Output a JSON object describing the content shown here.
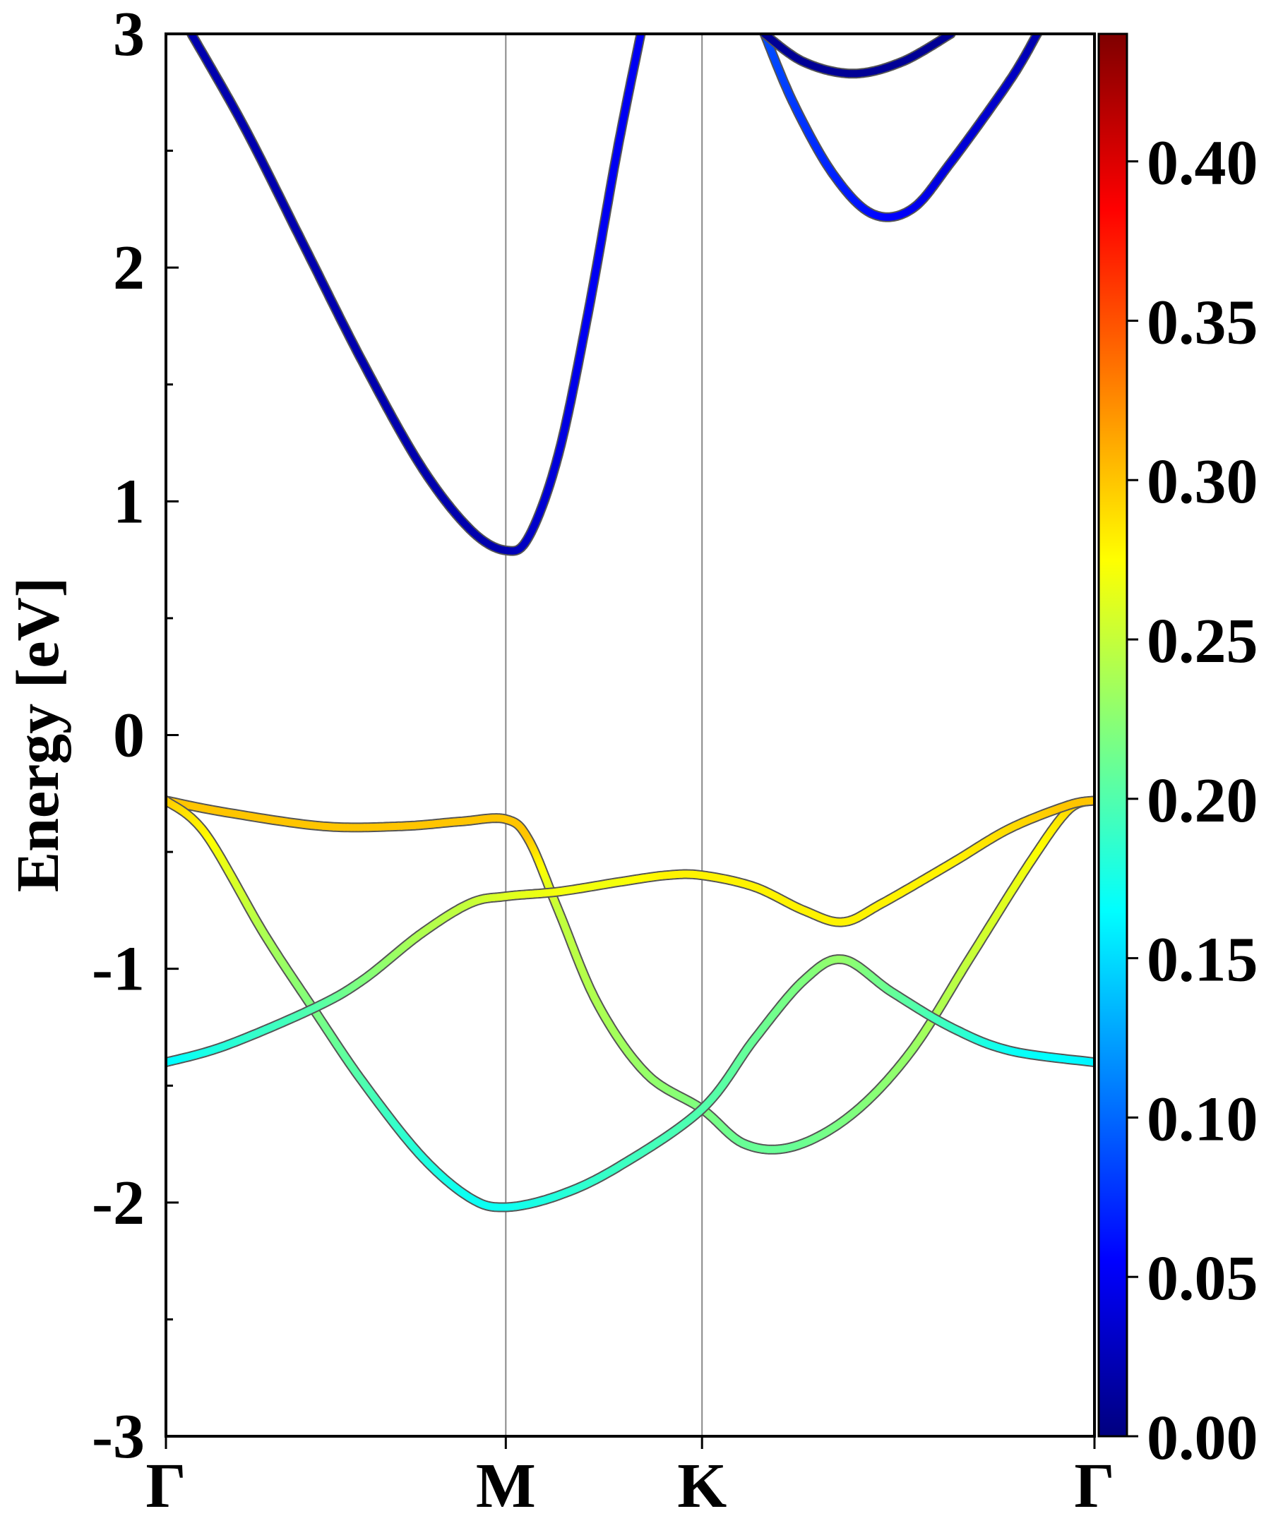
{
  "chart_data": {
    "type": "line",
    "title": "",
    "xlabel": "",
    "ylabel": "Energy [eV]",
    "ylim": [
      -3,
      3
    ],
    "y_ticks": [
      -3,
      -2,
      -1,
      0,
      1,
      2,
      3
    ],
    "y_tick_labels": [
      "-3",
      "-2",
      "-1",
      "0",
      "1",
      "2",
      "3"
    ],
    "y_minor_step": 0.5,
    "x_ticks": [
      0,
      1.732,
      2.732,
      4.732
    ],
    "x_tick_labels": [
      "Γ",
      "M",
      "K",
      "Γ"
    ],
    "xlim": [
      0,
      4.732
    ],
    "grid": false,
    "vertical_lines_at": [
      1.732,
      2.732
    ],
    "colorbar": {
      "colormap": "jet",
      "min": 0.0,
      "max": 0.44,
      "ticks": [
        0.0,
        0.05,
        0.1,
        0.15,
        0.2,
        0.25,
        0.3,
        0.35,
        0.4
      ],
      "tick_labels": [
        "0.00",
        "0.05",
        "0.10",
        "0.15",
        "0.20",
        "0.25",
        "0.30",
        "0.35",
        "0.40"
      ],
      "colors": [
        "#00007f",
        "#0000ff",
        "#007fff",
        "#00ffff",
        "#7fff7f",
        "#ffff00",
        "#ff7f00",
        "#ff0000",
        "#7f0000"
      ]
    },
    "series": [
      {
        "points": [
          [
            0.0,
            -0.28
          ],
          [
            0.3,
            -0.33
          ],
          [
            0.8,
            -0.39
          ],
          [
            1.2,
            -0.39
          ],
          [
            1.5,
            -0.37
          ],
          [
            1.732,
            -0.36
          ],
          [
            1.85,
            -0.45
          ],
          [
            2.0,
            -0.75
          ],
          [
            2.2,
            -1.15
          ],
          [
            2.45,
            -1.45
          ],
          [
            2.732,
            -1.6
          ],
          [
            2.95,
            -1.75
          ],
          [
            3.2,
            -1.76
          ],
          [
            3.5,
            -1.62
          ],
          [
            3.8,
            -1.35
          ],
          [
            4.1,
            -0.95
          ],
          [
            4.4,
            -0.55
          ],
          [
            4.6,
            -0.32
          ],
          [
            4.732,
            -0.28
          ]
        ],
        "weights": [
          0.3,
          0.3,
          0.3,
          0.3,
          0.3,
          0.3,
          0.3,
          0.25,
          0.24,
          0.23,
          0.22,
          0.21,
          0.21,
          0.22,
          0.23,
          0.25,
          0.27,
          0.29,
          0.3
        ]
      },
      {
        "points": [
          [
            0.0,
            -0.28
          ],
          [
            0.2,
            -0.42
          ],
          [
            0.5,
            -0.85
          ],
          [
            0.75,
            -1.17
          ],
          [
            1.0,
            -1.48
          ],
          [
            1.3,
            -1.8
          ],
          [
            1.55,
            -1.98
          ],
          [
            1.732,
            -2.02
          ],
          [
            2.0,
            -1.97
          ],
          [
            2.3,
            -1.85
          ],
          [
            2.732,
            -1.6
          ],
          [
            3.0,
            -1.3
          ],
          [
            3.25,
            -1.05
          ],
          [
            3.45,
            -0.96
          ],
          [
            3.7,
            -1.1
          ],
          [
            4.0,
            -1.25
          ],
          [
            4.3,
            -1.35
          ],
          [
            4.732,
            -1.4
          ]
        ],
        "weights": [
          0.3,
          0.28,
          0.24,
          0.22,
          0.2,
          0.18,
          0.17,
          0.17,
          0.18,
          0.19,
          0.2,
          0.21,
          0.22,
          0.23,
          0.21,
          0.19,
          0.17,
          0.16
        ]
      },
      {
        "points": [
          [
            0.0,
            -1.4
          ],
          [
            0.3,
            -1.33
          ],
          [
            0.75,
            -1.17
          ],
          [
            1.0,
            -1.05
          ],
          [
            1.3,
            -0.85
          ],
          [
            1.55,
            -0.72
          ],
          [
            1.732,
            -0.69
          ],
          [
            2.0,
            -0.67
          ],
          [
            2.3,
            -0.63
          ],
          [
            2.55,
            -0.6
          ],
          [
            2.732,
            -0.6
          ],
          [
            3.0,
            -0.65
          ],
          [
            3.25,
            -0.75
          ],
          [
            3.45,
            -0.8
          ],
          [
            3.65,
            -0.72
          ],
          [
            4.0,
            -0.55
          ],
          [
            4.3,
            -0.4
          ],
          [
            4.6,
            -0.3
          ],
          [
            4.732,
            -0.28
          ]
        ],
        "weights": [
          0.16,
          0.18,
          0.2,
          0.22,
          0.24,
          0.25,
          0.26,
          0.27,
          0.27,
          0.28,
          0.28,
          0.28,
          0.28,
          0.28,
          0.28,
          0.28,
          0.29,
          0.3,
          0.3
        ]
      },
      {
        "points": [
          [
            0.13,
            3.0
          ],
          [
            0.4,
            2.6
          ],
          [
            0.7,
            2.1
          ],
          [
            1.0,
            1.6
          ],
          [
            1.3,
            1.15
          ],
          [
            1.55,
            0.88
          ],
          [
            1.732,
            0.79
          ],
          [
            1.85,
            0.85
          ],
          [
            2.0,
            1.2
          ],
          [
            2.15,
            1.8
          ],
          [
            2.3,
            2.5
          ],
          [
            2.42,
            3.0
          ]
        ],
        "weights": [
          0.02,
          0.02,
          0.02,
          0.02,
          0.02,
          0.02,
          0.02,
          0.03,
          0.04,
          0.05,
          0.05,
          0.05
        ]
      },
      {
        "points": [
          [
            3.05,
            3.0
          ],
          [
            3.2,
            2.7
          ],
          [
            3.4,
            2.4
          ],
          [
            3.6,
            2.23
          ],
          [
            3.8,
            2.25
          ],
          [
            4.0,
            2.45
          ],
          [
            4.3,
            2.8
          ],
          [
            4.44,
            3.0
          ]
        ],
        "weights": [
          0.09,
          0.08,
          0.07,
          0.06,
          0.05,
          0.04,
          0.03,
          0.02
        ]
      },
      {
        "points": [
          [
            3.05,
            3.0
          ],
          [
            3.25,
            2.88
          ],
          [
            3.5,
            2.83
          ],
          [
            3.75,
            2.88
          ],
          [
            4.0,
            3.0
          ]
        ],
        "weights": [
          0.01,
          0.01,
          0.01,
          0.01,
          0.01
        ]
      }
    ]
  }
}
